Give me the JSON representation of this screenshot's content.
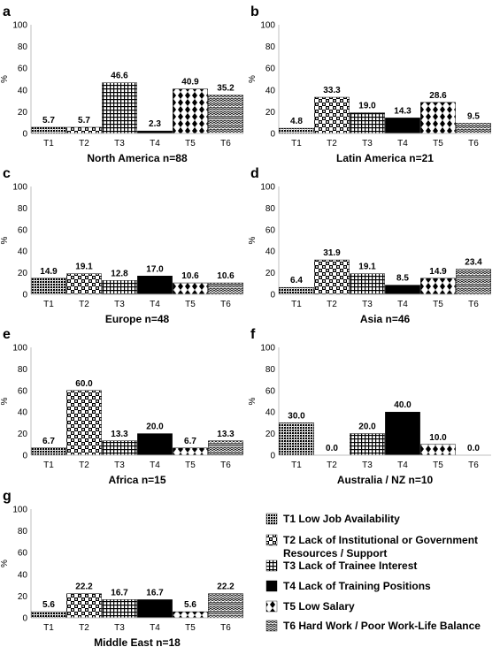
{
  "chart_data": [
    {
      "type": "bar",
      "letter": "a",
      "title": "North America n=88",
      "ylabel": "%",
      "ylim": [
        0,
        100
      ],
      "yticks": [
        "0",
        "20",
        "40",
        "60",
        "80",
        "100"
      ],
      "categories": [
        "T1",
        "T2",
        "T3",
        "T4",
        "T5",
        "T6"
      ],
      "values": [
        5.7,
        5.7,
        46.6,
        2.3,
        40.9,
        35.2
      ],
      "labels": [
        "5.7",
        "5.7",
        "46.6",
        "2.3",
        "40.9",
        "35.2"
      ]
    },
    {
      "type": "bar",
      "letter": "b",
      "title": "Latin America n=21",
      "ylabel": "%",
      "ylim": [
        0,
        100
      ],
      "yticks": [
        "0",
        "20",
        "40",
        "60",
        "80",
        "100"
      ],
      "categories": [
        "T1",
        "T2",
        "T3",
        "T4",
        "T5",
        "T6"
      ],
      "values": [
        4.8,
        33.3,
        19.0,
        14.3,
        28.6,
        9.5
      ],
      "labels": [
        "4.8",
        "33.3",
        "19.0",
        "14.3",
        "28.6",
        "9.5"
      ]
    },
    {
      "type": "bar",
      "letter": "c",
      "title": "Europe n=48",
      "ylabel": "%",
      "ylim": [
        0,
        100
      ],
      "yticks": [
        "0",
        "20",
        "40",
        "60",
        "80",
        "100"
      ],
      "categories": [
        "T1",
        "T2",
        "T3",
        "T4",
        "T5",
        "T6"
      ],
      "values": [
        14.9,
        19.1,
        12.8,
        17.0,
        10.6,
        10.6
      ],
      "labels": [
        "14.9",
        "19.1",
        "12.8",
        "17.0",
        "10.6",
        "10.6"
      ]
    },
    {
      "type": "bar",
      "letter": "d",
      "title": "Asia n=46",
      "ylabel": "%",
      "ylim": [
        0,
        100
      ],
      "yticks": [
        "0",
        "20",
        "40",
        "60",
        "80",
        "100"
      ],
      "categories": [
        "T1",
        "T2",
        "T3",
        "T4",
        "T5",
        "T6"
      ],
      "values": [
        6.4,
        31.9,
        19.1,
        8.5,
        14.9,
        23.4
      ],
      "labels": [
        "6.4",
        "31.9",
        "19.1",
        "8.5",
        "14.9",
        "23.4"
      ]
    },
    {
      "type": "bar",
      "letter": "e",
      "title": "Africa n=15",
      "ylabel": "%",
      "ylim": [
        0,
        100
      ],
      "yticks": [
        "0",
        "20",
        "40",
        "60",
        "80",
        "100"
      ],
      "categories": [
        "T1",
        "T2",
        "T3",
        "T4",
        "T5",
        "T6"
      ],
      "values": [
        6.7,
        60.0,
        13.3,
        20.0,
        6.7,
        13.3
      ],
      "labels": [
        "6.7",
        "60.0",
        "13.3",
        "20.0",
        "6.7",
        "13.3"
      ]
    },
    {
      "type": "bar",
      "letter": "f",
      "title": "Australia / NZ n=10",
      "ylabel": "%",
      "ylim": [
        0,
        100
      ],
      "yticks": [
        "0",
        "20",
        "40",
        "60",
        "80",
        "100"
      ],
      "categories": [
        "T1",
        "T2",
        "T3",
        "T4",
        "T5",
        "T6"
      ],
      "values": [
        30.0,
        0.0,
        20.0,
        40.0,
        10.0,
        0.0
      ],
      "labels": [
        "30.0",
        "0.0",
        "20.0",
        "40.0",
        "10.0",
        "0.0"
      ]
    },
    {
      "type": "bar",
      "letter": "g",
      "title": "Middle East n=18",
      "ylabel": "%",
      "ylim": [
        0,
        100
      ],
      "yticks": [
        "0",
        "20",
        "40",
        "60",
        "80",
        "100"
      ],
      "categories": [
        "T1",
        "T2",
        "T3",
        "T4",
        "T5",
        "T6"
      ],
      "values": [
        5.6,
        22.2,
        16.7,
        16.7,
        5.6,
        22.2
      ],
      "labels": [
        "5.6",
        "22.2",
        "16.7",
        "16.7",
        "5.6",
        "22.2"
      ]
    }
  ],
  "legend": [
    {
      "key": "T1",
      "lines": [
        "T1 Low Job Availability"
      ],
      "pattern": "dots-dense"
    },
    {
      "key": "T2",
      "lines": [
        "T2 Lack of Institutional or Government",
        "Resources / Support"
      ],
      "pattern": "checker"
    },
    {
      "key": "T3",
      "lines": [
        "T3 Lack of Trainee Interest"
      ],
      "pattern": "grid"
    },
    {
      "key": "T4",
      "lines": [
        "T4 Lack of Training Positions"
      ],
      "pattern": "solid"
    },
    {
      "key": "T5",
      "lines": [
        "T5 Low Salary"
      ],
      "pattern": "diamonds"
    },
    {
      "key": "T6",
      "lines": [
        "T6 Hard Work / Poor Work-Life Balance"
      ],
      "pattern": "waves"
    }
  ]
}
